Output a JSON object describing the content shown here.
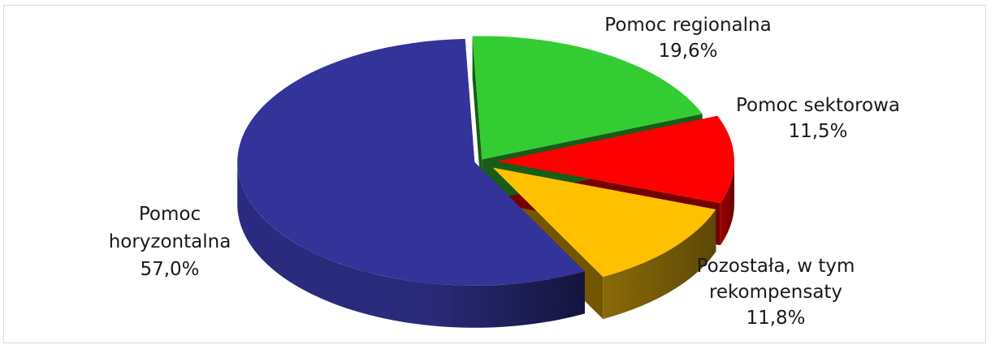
{
  "chart_data": {
    "type": "pie",
    "title": "",
    "slices": [
      {
        "name": "Pomoc regionalna",
        "value": 19.6,
        "label": "19,6%",
        "color": "#33cc33"
      },
      {
        "name": "Pomoc sektorowa",
        "value": 11.5,
        "label": "11,5%",
        "color": "#ff0000"
      },
      {
        "name": "Pozostała, w tym rekompensaty",
        "label_lines": [
          "Pozostała, w tym",
          "rekompensaty"
        ],
        "value": 11.8,
        "label": "11,8%",
        "color": "#ffc000"
      },
      {
        "name": "Pomoc horyzontalna",
        "label_lines": [
          "Pomoc",
          "horyzontalna"
        ],
        "value": 57.0,
        "label": "57,0%",
        "color": "#333399"
      }
    ],
    "legend": "none",
    "style": "3d-exploded"
  }
}
